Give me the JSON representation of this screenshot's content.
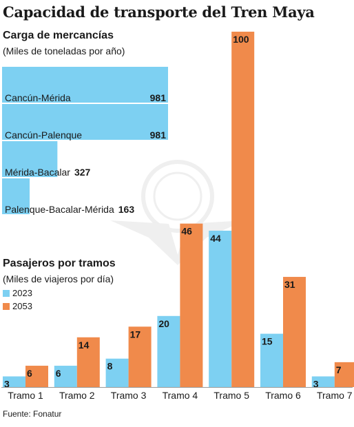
{
  "title": "Capacidad de transporte del Tren Maya",
  "source": "Fuente: Fonatur",
  "colors": {
    "series_2023": "#7dd0f2",
    "series_2053": "#f08a4b",
    "text": "#1a1a1a"
  },
  "chart_data": [
    {
      "type": "bar",
      "orientation": "horizontal",
      "title": "Carga de mercancías",
      "subtitle": "(Miles de toneladas por año)",
      "categories": [
        "Cancún-Mérida",
        "Cancún-Palenque",
        "Mérida-Bacalar",
        "Palenque-Bacalar-Mérida"
      ],
      "values": [
        981,
        981,
        327,
        163
      ],
      "data_labels": [
        "981",
        "981",
        "327",
        "163"
      ]
    },
    {
      "type": "bar",
      "orientation": "vertical",
      "title": "Pasajeros por tramos",
      "subtitle": "(Miles de viajeros por día)",
      "categories": [
        "Tramo 1",
        "Tramo 2",
        "Tramo 3",
        "Tramo 4",
        "Tramo 5",
        "Tramo 6",
        "Tramo 7"
      ],
      "series": [
        {
          "name": "2023",
          "values": [
            3,
            6,
            8,
            20,
            44,
            15,
            3
          ]
        },
        {
          "name": "2053",
          "values": [
            6,
            14,
            17,
            46,
            100,
            31,
            7
          ]
        }
      ],
      "legend": "top-left",
      "ylim": [
        0,
        100
      ],
      "grid": false
    }
  ]
}
